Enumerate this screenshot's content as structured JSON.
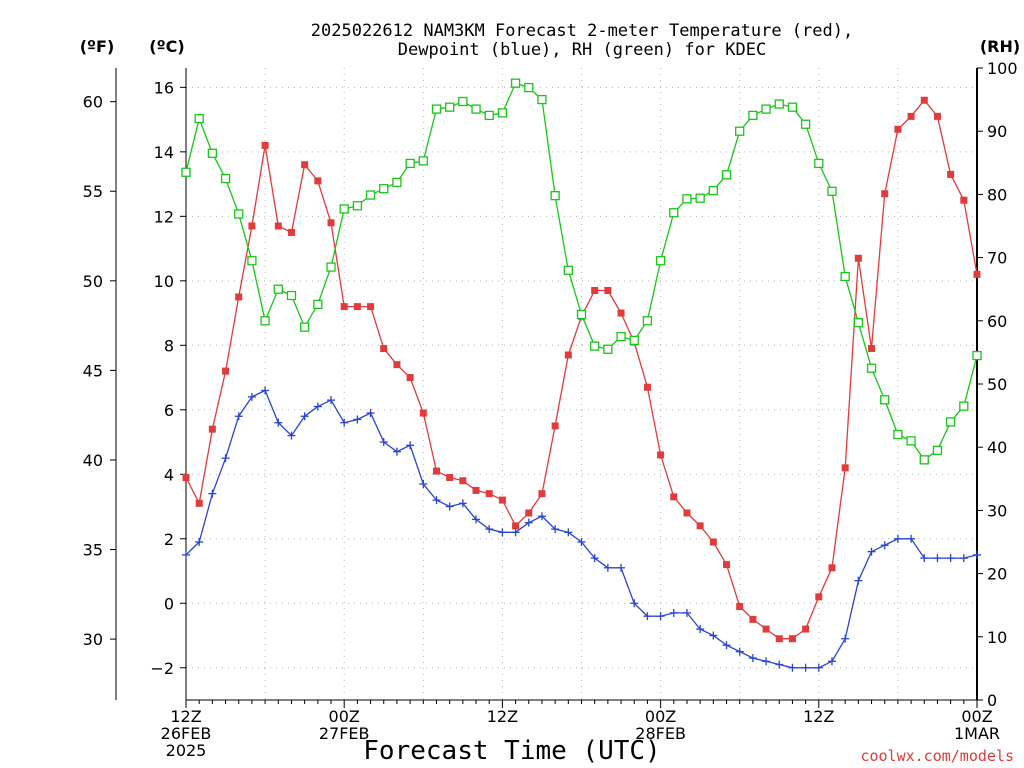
{
  "title": {
    "line1": "2025022612 NAM3KM Forecast 2-meter Temperature (red),",
    "line2": "Dewpoint (blue), RH (green) for KDEC"
  },
  "credit": "coolwx.com/models",
  "colors": {
    "temp": "#e23b3b",
    "dew": "#2a45d6",
    "rh": "#18c718",
    "grid": "#b5b5b5"
  },
  "chart_data": {
    "type": "line",
    "title": "2025022612 NAM3KM Forecast 2-meter Temperature (red), Dewpoint (blue), RH (green) for KDEC",
    "xlabel": "Forecast Time (UTC)",
    "grid": true,
    "x_hours": [
      0,
      1,
      2,
      3,
      4,
      5,
      6,
      7,
      8,
      9,
      10,
      11,
      12,
      13,
      14,
      15,
      16,
      17,
      18,
      19,
      20,
      21,
      22,
      23,
      24,
      25,
      26,
      27,
      28,
      29,
      30,
      31,
      32,
      33,
      34,
      35,
      36,
      37,
      38,
      39,
      40,
      41,
      42,
      43,
      44,
      45,
      46,
      47,
      48,
      49,
      50,
      51,
      52,
      53,
      54,
      55,
      56,
      57,
      58,
      59,
      60
    ],
    "x_ticks": [
      {
        "hour": 0,
        "lines": [
          "12Z",
          "26FEB",
          "2025"
        ]
      },
      {
        "hour": 12,
        "lines": [
          "00Z",
          "27FEB"
        ]
      },
      {
        "hour": 24,
        "lines": [
          "12Z"
        ]
      },
      {
        "hour": 36,
        "lines": [
          "00Z",
          "28FEB"
        ]
      },
      {
        "hour": 48,
        "lines": [
          "12Z"
        ]
      },
      {
        "hour": 60,
        "lines": [
          "00Z",
          "1MAR"
        ]
      }
    ],
    "y_celsius": {
      "unit_label": "(ºC)",
      "ylim": [
        -3,
        16.6
      ],
      "ticks": [
        {
          "v": -2,
          "label": "−2"
        },
        {
          "v": 0,
          "label": "0"
        },
        {
          "v": 2,
          "label": "2"
        },
        {
          "v": 4,
          "label": "4"
        },
        {
          "v": 6,
          "label": "6"
        },
        {
          "v": 8,
          "label": "8"
        },
        {
          "v": 10,
          "label": "10"
        },
        {
          "v": 12,
          "label": "12"
        },
        {
          "v": 14,
          "label": "14"
        },
        {
          "v": 16,
          "label": "16"
        }
      ]
    },
    "y_fahrenheit": {
      "unit_label": "(ºF)",
      "ticks": [
        {
          "v": 30,
          "label": "30"
        },
        {
          "v": 35,
          "label": "35"
        },
        {
          "v": 40,
          "label": "40"
        },
        {
          "v": 45,
          "label": "45"
        },
        {
          "v": 50,
          "label": "50"
        },
        {
          "v": 55,
          "label": "55"
        },
        {
          "v": 60,
          "label": "60"
        }
      ]
    },
    "y_rh": {
      "unit_label": "(RH)",
      "ylim": [
        0,
        100
      ],
      "ticks": [
        {
          "v": 0,
          "label": "0"
        },
        {
          "v": 10,
          "label": "10"
        },
        {
          "v": 20,
          "label": "20"
        },
        {
          "v": 30,
          "label": "30"
        },
        {
          "v": 40,
          "label": "40"
        },
        {
          "v": 50,
          "label": "50"
        },
        {
          "v": 60,
          "label": "60"
        },
        {
          "v": 70,
          "label": "70"
        },
        {
          "v": 80,
          "label": "80"
        },
        {
          "v": 90,
          "label": "90"
        },
        {
          "v": 100,
          "label": "100"
        }
      ]
    },
    "series": [
      {
        "key": "temp",
        "name": "Temperature",
        "axis": "celsius",
        "values": [
          3.9,
          3.1,
          5.4,
          7.2,
          9.5,
          11.7,
          14.2,
          11.7,
          11.5,
          13.6,
          13.1,
          11.8,
          9.2,
          9.2,
          9.2,
          7.9,
          7.4,
          7.0,
          5.9,
          4.1,
          3.9,
          3.8,
          3.5,
          3.4,
          3.2,
          2.4,
          2.8,
          3.4,
          5.5,
          7.7,
          8.9,
          9.7,
          9.7,
          9.0,
          8.1,
          6.7,
          4.6,
          3.3,
          2.8,
          2.4,
          1.9,
          1.2,
          -0.1,
          -0.5,
          -0.8,
          -1.1,
          -1.1,
          -0.8,
          0.2,
          1.1,
          4.2,
          10.7,
          7.9,
          12.7,
          14.7,
          15.1,
          15.6,
          15.1,
          13.3,
          12.5,
          10.2
        ]
      },
      {
        "key": "dew",
        "name": "Dewpoint",
        "axis": "celsius",
        "values": [
          1.5,
          1.9,
          3.4,
          4.5,
          5.8,
          6.4,
          6.6,
          5.6,
          5.2,
          5.8,
          6.1,
          6.3,
          5.6,
          5.7,
          5.9,
          5.0,
          4.7,
          4.9,
          3.7,
          3.2,
          3.0,
          3.1,
          2.6,
          2.3,
          2.2,
          2.2,
          2.5,
          2.7,
          2.3,
          2.2,
          1.9,
          1.4,
          1.1,
          1.1,
          0.0,
          -0.4,
          -0.4,
          -0.3,
          -0.3,
          -0.8,
          -1.0,
          -1.3,
          -1.5,
          -1.7,
          -1.8,
          -1.9,
          -2.0,
          -2.0,
          -2.0,
          -1.8,
          -1.1,
          0.7,
          1.6,
          1.8,
          2.0,
          2.0,
          1.4,
          1.4,
          1.4,
          1.4,
          1.5
        ]
      },
      {
        "key": "rh",
        "name": "RH",
        "axis": "rh",
        "values": [
          83.5,
          92.0,
          86.5,
          82.5,
          76.9,
          69.5,
          60.0,
          65.0,
          64.0,
          59.0,
          62.6,
          68.5,
          77.7,
          78.2,
          79.9,
          80.9,
          81.9,
          84.9,
          85.3,
          93.5,
          93.8,
          94.7,
          93.5,
          92.5,
          92.9,
          97.6,
          96.9,
          95.0,
          79.8,
          68.0,
          61.0,
          56.0,
          55.5,
          57.5,
          56.9,
          60.0,
          69.5,
          77.1,
          79.3,
          79.4,
          80.6,
          83.1,
          90.0,
          92.5,
          93.5,
          94.3,
          93.8,
          91.1,
          84.9,
          80.5,
          67.0,
          59.7,
          52.5,
          47.5,
          42.0,
          41.0,
          38.0,
          39.5,
          44.0,
          46.5,
          54.5
        ]
      }
    ]
  }
}
